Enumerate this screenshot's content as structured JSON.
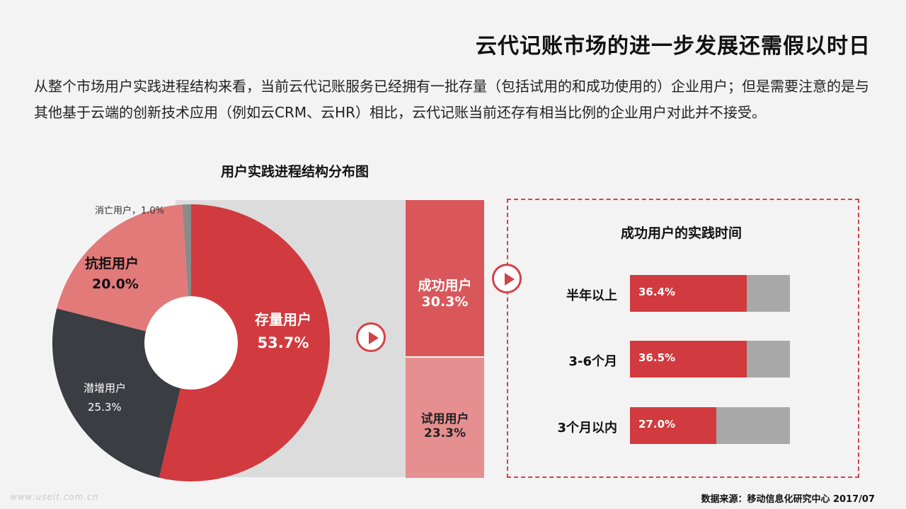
{
  "title": "云代记账市场的进一步发展还需假以时日",
  "intro": "从整个市场用户实践进程结构来看，当前云代记账服务已经拥有一批存量（包括试用的和成功使用的）企业用户；但是需要注意的是与其他基于云端的创新技术应用（例如云CRM、云HR）相比，云代记账当前还存有相当比例的企业用户对此并不接受。",
  "source": "数据来源：移动信息化研究中心 2017/07",
  "watermark": "www.useit.com.cn",
  "colors": {
    "accent": "#d13a3e",
    "pink": "#e27a7a",
    "dark": "#3a3d42",
    "gray": "#8a8a8a",
    "success": "#d9575b",
    "trial": "#e58f90",
    "bar_rest": "#a8a8a8"
  },
  "chart_data": [
    {
      "type": "pie",
      "title": "用户实践进程结构分布图",
      "unit": "%",
      "slices": [
        {
          "label": "存量用户",
          "value": 53.7,
          "value_text": "53.7%",
          "color": "#d13a3e"
        },
        {
          "label": "潜增用户",
          "value": 25.3,
          "value_text": "25.3%",
          "color": "#3a3d42"
        },
        {
          "label": "抗拒用户",
          "value": 20.0,
          "value_text": "20.0%",
          "color": "#e27a7a"
        },
        {
          "label": "消亡用户",
          "value": 1.0,
          "value_text": "1.0%",
          "label_text": "消亡用户，1.0%",
          "color": "#8a8a8a"
        }
      ]
    },
    {
      "type": "bar",
      "subtype": "stacked",
      "categories": [
        "存量用户"
      ],
      "series": [
        {
          "name": "成功用户",
          "values": [
            30.3
          ],
          "value_text": "30.3%",
          "color": "#d9575b"
        },
        {
          "name": "试用用户",
          "values": [
            23.3
          ],
          "value_text": "23.3%",
          "color": "#e58f90"
        }
      ]
    },
    {
      "type": "bar",
      "orientation": "horizontal",
      "title": "成功用户的实践时间",
      "categories": [
        "半年以上",
        "3-6个月",
        "3个月以内"
      ],
      "values": [
        36.4,
        36.5,
        27.0
      ],
      "value_texts": [
        "36.4%",
        "36.5%",
        "27.0%"
      ],
      "xlim": [
        0,
        50
      ]
    }
  ]
}
